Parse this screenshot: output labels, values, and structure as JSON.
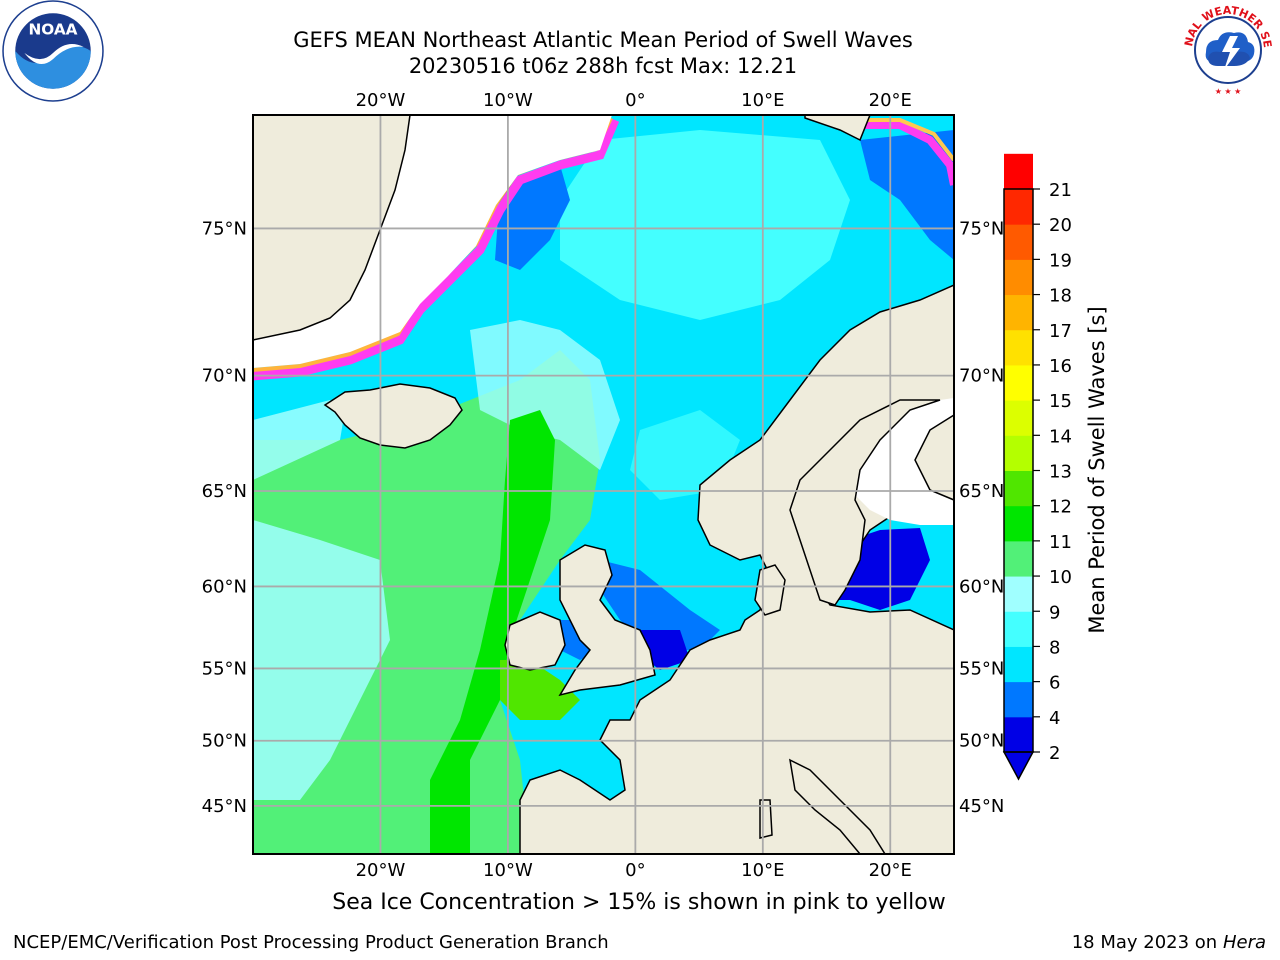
{
  "title": {
    "line1": "GEFS MEAN Northeast Atlantic Mean Period of Swell Waves",
    "line2": "20230516 t06z 288h fcst   Max: 12.21"
  },
  "logos": {
    "left": "noaa-logo",
    "right": "nws-logo"
  },
  "map": {
    "lon_range": [
      -30,
      25
    ],
    "lat_range": [
      41,
      78
    ],
    "lon_ticks": [
      {
        "lon": -20,
        "label": "20°W"
      },
      {
        "lon": -10,
        "label": "10°W"
      },
      {
        "lon": 0,
        "label": "0°"
      },
      {
        "lon": 10,
        "label": "10°E"
      },
      {
        "lon": 20,
        "label": "20°E"
      }
    ],
    "lat_ticks": [
      {
        "lat": 75,
        "label": "75°N"
      },
      {
        "lat": 70,
        "label": "70°N"
      },
      {
        "lat": 65,
        "label": "65°N"
      },
      {
        "lat": 60,
        "label": "60°N"
      },
      {
        "lat": 55,
        "label": "55°N"
      },
      {
        "lat": 50,
        "label": "50°N"
      },
      {
        "lat": 45,
        "label": "45°N"
      }
    ],
    "grid": true,
    "land_color": "#efecdc"
  },
  "colorbar": {
    "label": "Mean Period of Swell Waves [s]",
    "levels": [
      2,
      4,
      6,
      8,
      9,
      10,
      11,
      12,
      13,
      14,
      15,
      16,
      17,
      18,
      19,
      20,
      21
    ],
    "colors": [
      "#0000e6",
      "#0078ff",
      "#00e6ff",
      "#44ffff",
      "#a0ffff",
      "#52f078",
      "#00e600",
      "#50e600",
      "#b4ff00",
      "#dcff00",
      "#ffff00",
      "#ffe100",
      "#ffb400",
      "#ff8c00",
      "#ff5a00",
      "#ff2800",
      "#ff0000"
    ],
    "under_color": "#0000e6",
    "extend": "min"
  },
  "note": "Sea Ice Concentration > 15% is shown in pink to yellow",
  "footer": {
    "credit": "NCEP/EMC/Verification Post Processing Product Generation Branch",
    "date": "18 May 2023 on",
    "machine": "Hera"
  }
}
